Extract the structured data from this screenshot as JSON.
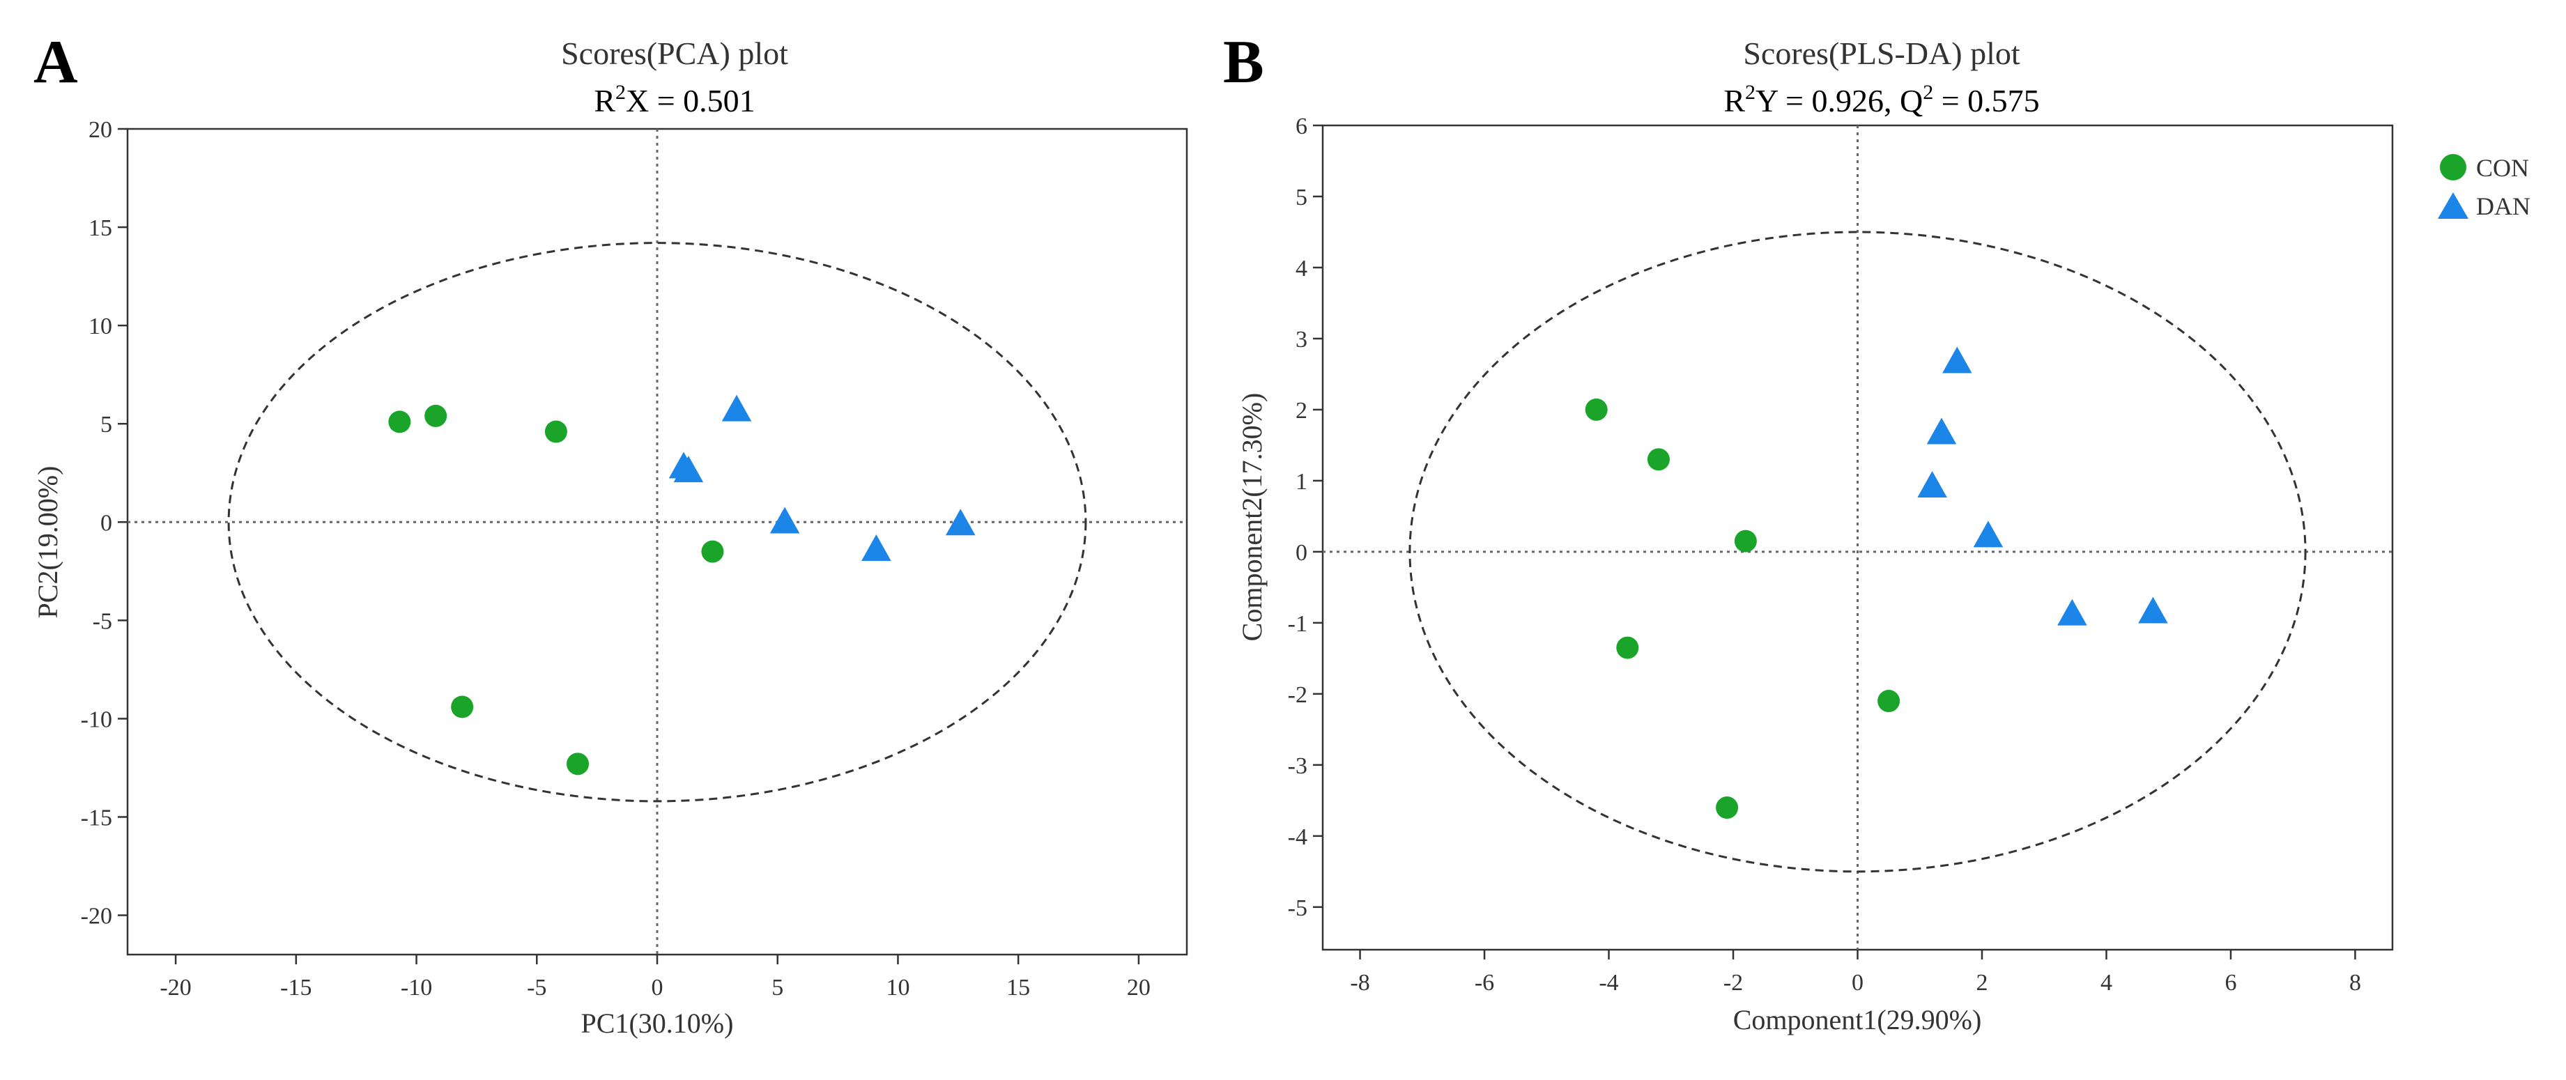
{
  "chart_data": [
    {
      "panel": "A",
      "type": "scatter",
      "title": "Scores(PCA) plot",
      "subtitle_parts": {
        "base": "R",
        "sup": "2",
        "rest": "X = 0.501"
      },
      "xlabel": "PC1(30.10%)",
      "ylabel": "PC2(19.00%)",
      "xlim": [
        -22,
        22
      ],
      "ylim": [
        -22,
        20
      ],
      "xticks": [
        -20,
        -15,
        -10,
        -5,
        0,
        5,
        10,
        15,
        20
      ],
      "yticks": [
        -20,
        -15,
        -10,
        -5,
        0,
        5,
        10,
        15,
        20
      ],
      "ellipse": {
        "cx": 0,
        "cy": 0,
        "rx": 17.8,
        "ry": 14.2
      },
      "series": [
        {
          "name": "CON",
          "marker": "circle",
          "color": "#1aa52a",
          "points": [
            [
              -10.7,
              5.1
            ],
            [
              -9.2,
              5.4
            ],
            [
              -4.2,
              4.6
            ],
            [
              2.3,
              -1.5
            ],
            [
              -8.1,
              -9.4
            ],
            [
              -3.3,
              -12.3
            ]
          ]
        },
        {
          "name": "DAN",
          "marker": "triangle",
          "color": "#1c86e8",
          "points": [
            [
              3.3,
              5.8
            ],
            [
              1.1,
              2.9
            ],
            [
              1.3,
              2.7
            ],
            [
              5.3,
              0.1
            ],
            [
              9.1,
              -1.3
            ],
            [
              12.6,
              0.0
            ]
          ]
        }
      ]
    },
    {
      "panel": "B",
      "type": "scatter",
      "title": "Scores(PLS-DA) plot",
      "subtitle_parts": {
        "base1": "R",
        "sup1": "2",
        "mid": "Y = 0.926, Q",
        "sup2": "2",
        "rest": " = 0.575"
      },
      "xlabel": "Component1(29.90%)",
      "ylabel": "Component2(17.30%)",
      "xlim": [
        -8.6,
        8.6
      ],
      "ylim": [
        -5.6,
        6
      ],
      "xticks": [
        -8,
        -6,
        -4,
        -2,
        0,
        2,
        4,
        6,
        8
      ],
      "yticks": [
        -5,
        -4,
        -3,
        -2,
        -1,
        0,
        1,
        2,
        3,
        4,
        5,
        6
      ],
      "ellipse": {
        "cx": 0,
        "cy": 0,
        "rx": 7.2,
        "ry": 4.5
      },
      "legend_position": "top-right",
      "series": [
        {
          "name": "CON",
          "marker": "circle",
          "color": "#1aa52a",
          "points": [
            [
              -4.2,
              2.0
            ],
            [
              -3.2,
              1.3
            ],
            [
              -1.8,
              0.15
            ],
            [
              -3.7,
              -1.35
            ],
            [
              0.5,
              -2.1
            ],
            [
              -2.1,
              -3.6
            ]
          ]
        },
        {
          "name": "DAN",
          "marker": "triangle",
          "color": "#1c86e8",
          "points": [
            [
              1.6,
              2.7
            ],
            [
              1.35,
              1.7
            ],
            [
              1.2,
              0.95
            ],
            [
              2.1,
              0.25
            ],
            [
              3.45,
              -0.85
            ],
            [
              4.75,
              -0.82
            ]
          ]
        }
      ]
    }
  ]
}
